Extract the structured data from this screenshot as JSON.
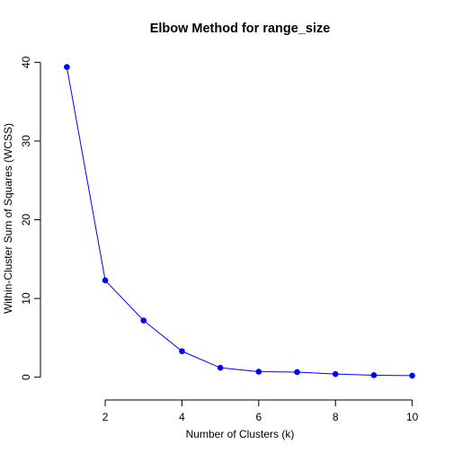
{
  "chart_data": {
    "type": "line",
    "title": "Elbow Method for range_size",
    "xlabel": "Number of Clusters (k)",
    "ylabel": "Within-Cluster Sum of Squares (WCSS)",
    "x": [
      1,
      2,
      3,
      4,
      5,
      6,
      7,
      8,
      9,
      10
    ],
    "series": [
      {
        "values": [
          39.4,
          12.3,
          7.2,
          3.3,
          1.2,
          0.7,
          0.65,
          0.4,
          0.25,
          0.2
        ]
      }
    ],
    "x_ticks": [
      2,
      4,
      6,
      8,
      10
    ],
    "y_ticks": [
      0,
      10,
      20,
      30,
      40
    ],
    "xlim": [
      0.64,
      10.36
    ],
    "ylim": [
      -1.18,
      41.18
    ],
    "grid": false,
    "legend": "none",
    "colors": {
      "series": "#0000ff",
      "axis": "#000000"
    },
    "marker": "filled-circle"
  }
}
